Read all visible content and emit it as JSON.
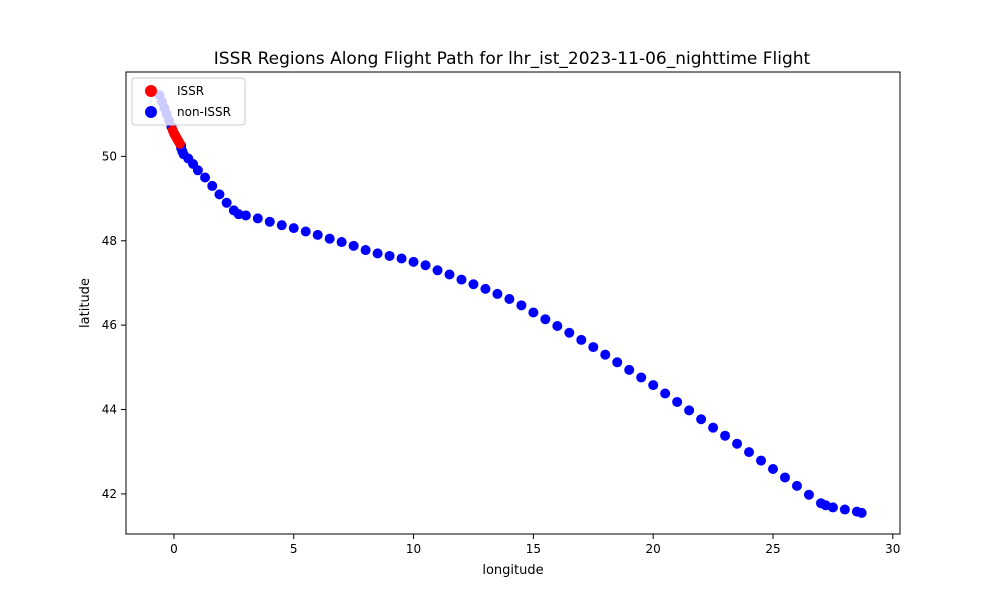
{
  "chart_data": {
    "type": "scatter",
    "title": "ISSR Regions Along Flight Path for lhr_ist_2023-11-06_nighttime Flight",
    "xlabel": "longitude",
    "ylabel": "latitude",
    "xlim": [
      -2.0,
      30.3
    ],
    "ylim": [
      41.05,
      52.0
    ],
    "xticks": [
      0,
      5,
      10,
      15,
      20,
      25,
      30
    ],
    "yticks": [
      42,
      44,
      46,
      48,
      50
    ],
    "grid": false,
    "legend_position": "top-left",
    "series": [
      {
        "name": "ISSR",
        "color": "#ff0000",
        "points": [
          [
            -0.05,
            50.62
          ],
          [
            0.0,
            50.55
          ],
          [
            0.05,
            50.5
          ],
          [
            0.1,
            50.45
          ],
          [
            0.15,
            50.4
          ],
          [
            0.2,
            50.35
          ],
          [
            0.25,
            50.3
          ]
        ]
      },
      {
        "name": "non-ISSR",
        "color": "#0000ff",
        "points": [
          [
            -0.6,
            51.45
          ],
          [
            -0.5,
            51.3
          ],
          [
            -0.4,
            51.15
          ],
          [
            -0.3,
            51.0
          ],
          [
            -0.2,
            50.85
          ],
          [
            -0.1,
            50.7
          ],
          [
            0.3,
            50.25
          ],
          [
            0.3,
            50.2
          ],
          [
            0.35,
            50.12
          ],
          [
            0.4,
            50.05
          ],
          [
            0.6,
            49.95
          ],
          [
            0.8,
            49.82
          ],
          [
            1.0,
            49.67
          ],
          [
            1.3,
            49.5
          ],
          [
            1.6,
            49.3
          ],
          [
            1.9,
            49.1
          ],
          [
            2.2,
            48.9
          ],
          [
            2.5,
            48.72
          ],
          [
            2.7,
            48.63
          ],
          [
            3.0,
            48.6
          ],
          [
            3.5,
            48.53
          ],
          [
            4.0,
            48.45
          ],
          [
            4.5,
            48.37
          ],
          [
            5.0,
            48.3
          ],
          [
            5.5,
            48.22
          ],
          [
            6.0,
            48.14
          ],
          [
            6.5,
            48.05
          ],
          [
            7.0,
            47.97
          ],
          [
            7.5,
            47.88
          ],
          [
            8.0,
            47.78
          ],
          [
            8.5,
            47.7
          ],
          [
            9.0,
            47.64
          ],
          [
            9.5,
            47.58
          ],
          [
            10.0,
            47.5
          ],
          [
            10.5,
            47.42
          ],
          [
            11.0,
            47.3
          ],
          [
            11.5,
            47.2
          ],
          [
            12.0,
            47.08
          ],
          [
            12.5,
            46.97
          ],
          [
            13.0,
            46.86
          ],
          [
            13.5,
            46.74
          ],
          [
            14.0,
            46.62
          ],
          [
            14.5,
            46.47
          ],
          [
            15.0,
            46.3
          ],
          [
            15.5,
            46.14
          ],
          [
            16.0,
            45.98
          ],
          [
            16.5,
            45.82
          ],
          [
            17.0,
            45.65
          ],
          [
            17.5,
            45.48
          ],
          [
            18.0,
            45.3
          ],
          [
            18.5,
            45.12
          ],
          [
            19.0,
            44.94
          ],
          [
            19.5,
            44.76
          ],
          [
            20.0,
            44.58
          ],
          [
            20.5,
            44.38
          ],
          [
            21.0,
            44.18
          ],
          [
            21.5,
            43.98
          ],
          [
            22.0,
            43.77
          ],
          [
            22.5,
            43.57
          ],
          [
            23.0,
            43.38
          ],
          [
            23.5,
            43.19
          ],
          [
            24.0,
            42.99
          ],
          [
            24.5,
            42.79
          ],
          [
            25.0,
            42.59
          ],
          [
            25.5,
            42.39
          ],
          [
            26.0,
            42.19
          ],
          [
            26.5,
            41.98
          ],
          [
            27.0,
            41.78
          ],
          [
            27.2,
            41.73
          ],
          [
            27.5,
            41.68
          ],
          [
            28.0,
            41.63
          ],
          [
            28.5,
            41.58
          ],
          [
            28.7,
            41.55
          ]
        ]
      }
    ]
  }
}
